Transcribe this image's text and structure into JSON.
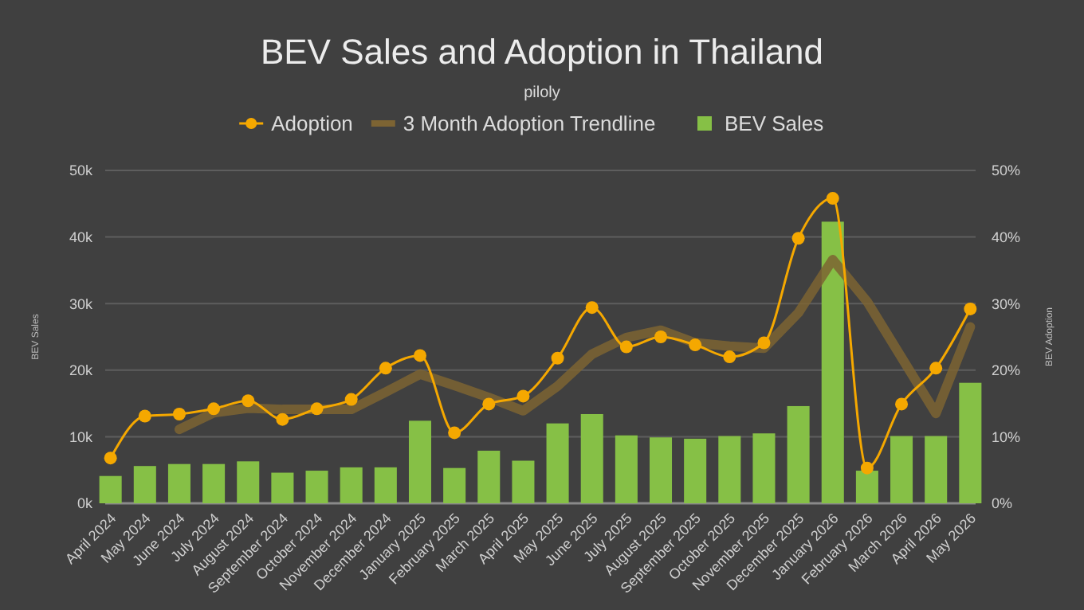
{
  "chart_data": {
    "type": "bar",
    "title": "BEV Sales and Adoption in Thailand",
    "subtitle": "piloly",
    "ylabel": "BEV Sales",
    "y2label": "BEV Adoption",
    "categories": [
      "April 2024",
      "May 2024",
      "June 2024",
      "July 2024",
      "August 2024",
      "September 2024",
      "October 2024",
      "November 2024",
      "December 2024",
      "January 2025",
      "February 2025",
      "March 2025",
      "April 2025",
      "May 2025",
      "June 2025",
      "July 2025",
      "August 2025",
      "September 2025",
      "October 2025",
      "November 2025",
      "December 2025",
      "January 2026",
      "February 2026",
      "March 2026",
      "April 2026",
      "May 2026"
    ],
    "series": [
      {
        "name": "Adoption",
        "type": "line",
        "axis": "y2",
        "color": "#f5a800",
        "marker": "circle",
        "values": [
          6.8,
          13.1,
          13.4,
          14.2,
          15.4,
          12.6,
          14.2,
          15.6,
          20.3,
          22.2,
          10.6,
          14.9,
          16.1,
          21.8,
          29.4,
          23.5,
          25.0,
          23.8,
          22.0,
          24.1,
          39.8,
          45.8,
          5.3,
          14.9,
          20.3,
          29.2
        ]
      },
      {
        "name": "3 Month Adoption Trendline",
        "type": "line",
        "axis": "y2",
        "color": "#7d6433",
        "marker": "none",
        "values": [
          null,
          null,
          11.1,
          13.6,
          14.3,
          14.1,
          14.1,
          14.1,
          16.7,
          19.4,
          17.7,
          15.9,
          13.9,
          17.6,
          22.4,
          24.9,
          26.0,
          24.1,
          23.6,
          23.3,
          28.6,
          36.6,
          30.3,
          21.9,
          13.5,
          26.5
        ]
      },
      {
        "name": "BEV Sales",
        "color": "#86c046",
        "values": [
          4100,
          5600,
          5900,
          5900,
          6300,
          4600,
          4900,
          5400,
          5400,
          12400,
          5300,
          7900,
          6400,
          12000,
          13400,
          10200,
          9900,
          9700,
          10100,
          10500,
          14600,
          42300,
          4900,
          10100,
          10100,
          18100
        ]
      }
    ],
    "ylim": [
      0,
      50000
    ],
    "yticks": [
      {
        "value": 0,
        "label": "0k"
      },
      {
        "value": 10000,
        "label": "10k"
      },
      {
        "value": 20000,
        "label": "20k"
      },
      {
        "value": 30000,
        "label": "30k"
      },
      {
        "value": 40000,
        "label": "40k"
      },
      {
        "value": 50000,
        "label": "50k"
      }
    ],
    "y2lim": [
      0,
      50
    ],
    "y2ticks": [
      {
        "value": 0,
        "label": "0%"
      },
      {
        "value": 10,
        "label": "10%"
      },
      {
        "value": 20,
        "label": "20%"
      },
      {
        "value": 30,
        "label": "30%"
      },
      {
        "value": 40,
        "label": "40%"
      },
      {
        "value": 50,
        "label": "50%"
      }
    ],
    "grid": "y",
    "legend": "top"
  }
}
